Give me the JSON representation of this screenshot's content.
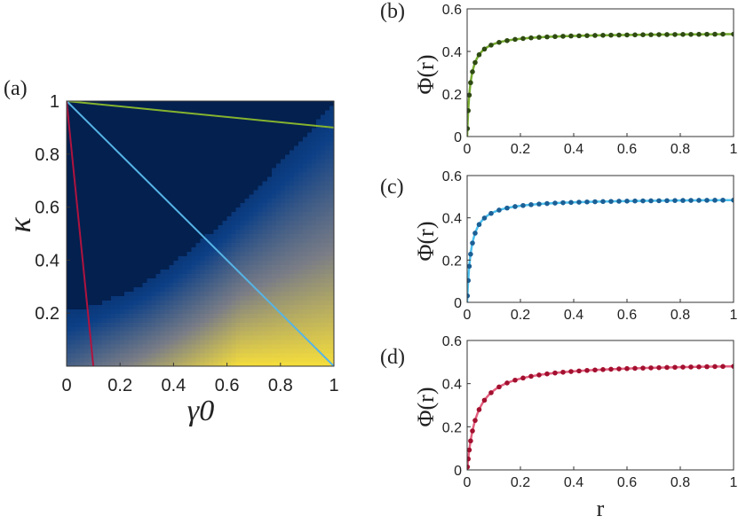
{
  "chart_data": [
    {
      "panel_label": "(a)",
      "type": "heatmap",
      "xlabel": "γ0",
      "ylabel": "κ",
      "xlim": [
        0,
        1
      ],
      "ylim": [
        0,
        1
      ],
      "x_ticks": [
        "0",
        "0.2",
        "0.4",
        "0.6",
        "0.8",
        "1"
      ],
      "y_ticks": [
        "0.2",
        "0.4",
        "0.6",
        "0.8",
        "1"
      ],
      "colormap": [
        "#03204f",
        "#0c3f86",
        "#7a7d86",
        "#f6de3b"
      ],
      "boundary_curve": {
        "x": [
          0,
          0.1,
          0.2,
          0.3,
          0.4,
          0.5,
          0.6,
          0.7,
          0.8,
          0.9,
          1.0
        ],
        "y": [
          0.21,
          0.23,
          0.27,
          0.32,
          0.39,
          0.47,
          0.56,
          0.66,
          0.77,
          0.88,
          0.99
        ]
      },
      "lines": [
        {
          "color": "#86b32e",
          "x": [
            0,
            1
          ],
          "y": [
            1,
            0.9
          ]
        },
        {
          "color": "#56b4e6",
          "x": [
            0,
            1
          ],
          "y": [
            1,
            0
          ]
        },
        {
          "color": "#b0133f",
          "x": [
            0,
            0.1
          ],
          "y": [
            1,
            0
          ]
        }
      ]
    },
    {
      "panel_label": "(b)",
      "type": "line",
      "ylabel": "Φ(r)",
      "xlim": [
        0,
        1
      ],
      "ylim": [
        0,
        0.6
      ],
      "x_ticks": [
        "0",
        "0.2",
        "0.4",
        "0.6",
        "0.8",
        "1"
      ],
      "y_ticks": [
        "0",
        "0.2",
        "0.4",
        "0.6"
      ],
      "line_color": "#77ac30",
      "point_color": "#2e4a12",
      "phi_inf": 0.487,
      "r0": 0.012,
      "points_x": [
        0.001,
        0.004,
        0.008,
        0.013,
        0.02,
        0.03,
        0.045,
        0.065,
        0.09,
        0.12,
        0.15,
        0.18,
        0.21,
        0.24,
        0.27,
        0.3,
        0.33,
        0.36,
        0.39,
        0.42,
        0.45,
        0.48,
        0.51,
        0.54,
        0.57,
        0.6,
        0.63,
        0.66,
        0.69,
        0.72,
        0.75,
        0.78,
        0.81,
        0.84,
        0.87,
        0.9,
        0.93,
        0.96,
        1.0
      ]
    },
    {
      "panel_label": "(c)",
      "type": "line",
      "ylabel": "Φ(r)",
      "xlim": [
        0,
        1
      ],
      "ylim": [
        0,
        0.6
      ],
      "x_ticks": [
        "0",
        "0.2",
        "0.4",
        "0.6",
        "0.8",
        "1"
      ],
      "y_ticks": [
        "0",
        "0.2",
        "0.4",
        "0.6"
      ],
      "line_color": "#4cc0ee",
      "point_color": "#1b5f95",
      "phi_inf": 0.491,
      "r0": 0.015,
      "points_x": [
        0.001,
        0.004,
        0.008,
        0.013,
        0.02,
        0.03,
        0.045,
        0.065,
        0.09,
        0.12,
        0.15,
        0.18,
        0.21,
        0.24,
        0.27,
        0.3,
        0.33,
        0.36,
        0.39,
        0.42,
        0.45,
        0.48,
        0.51,
        0.54,
        0.57,
        0.6,
        0.63,
        0.66,
        0.69,
        0.72,
        0.75,
        0.78,
        0.81,
        0.84,
        0.87,
        0.9,
        0.93,
        0.96,
        1.0
      ]
    },
    {
      "panel_label": "(d)",
      "type": "line",
      "ylabel": "Φ(r)",
      "xlabel": "r",
      "xlim": [
        0,
        1
      ],
      "ylim": [
        0,
        0.6
      ],
      "x_ticks": [
        "0",
        "0.2",
        "0.4",
        "0.6",
        "0.8",
        "1"
      ],
      "y_ticks": [
        "0",
        "0.2",
        "0.4",
        "0.6"
      ],
      "line_color": "#e2607f",
      "point_color": "#a3102f",
      "phi_inf": 0.497,
      "r0": 0.035,
      "points_x": [
        0.001,
        0.004,
        0.008,
        0.013,
        0.02,
        0.03,
        0.045,
        0.065,
        0.09,
        0.12,
        0.15,
        0.18,
        0.21,
        0.24,
        0.27,
        0.3,
        0.33,
        0.36,
        0.39,
        0.42,
        0.45,
        0.48,
        0.51,
        0.54,
        0.57,
        0.6,
        0.63,
        0.66,
        0.69,
        0.72,
        0.75,
        0.78,
        0.81,
        0.84,
        0.87,
        0.9,
        0.93,
        0.96,
        1.0
      ]
    }
  ]
}
